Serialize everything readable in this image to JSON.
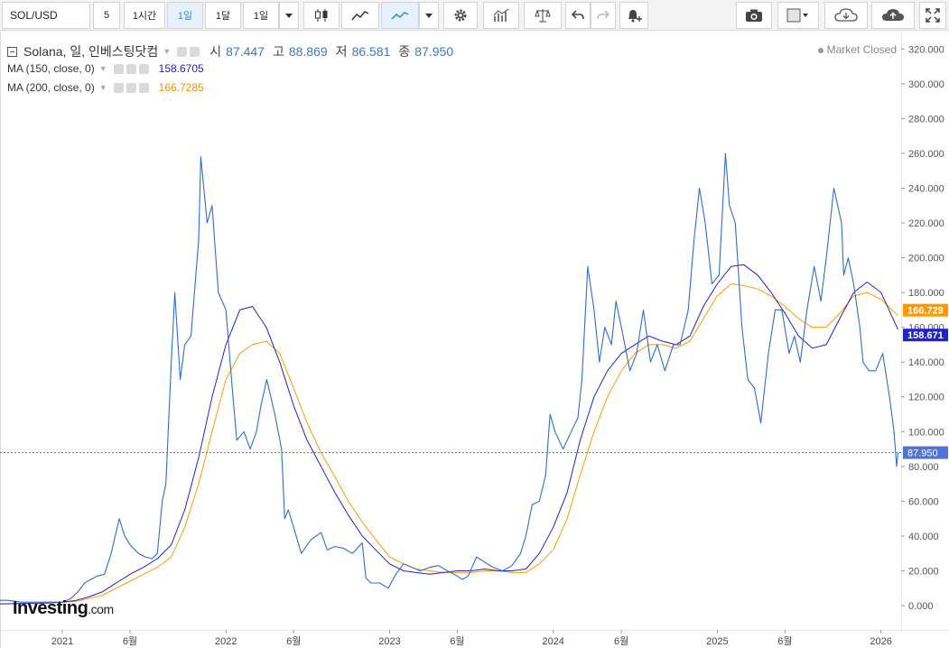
{
  "toolbar": {
    "symbol": "SOL/USD",
    "intervals": [
      "5",
      "1시간",
      "1일",
      "1달",
      "1일"
    ],
    "active_interval": 2
  },
  "legend": {
    "name": "Solana, 일, 인베스팅닷컴",
    "open_label": "시",
    "open": "87.447",
    "high_label": "고",
    "high": "88.869",
    "low_label": "저",
    "low": "86.581",
    "close_label": "종",
    "close": "87.950",
    "ma1_label": "MA (150, close, 0)",
    "ma1_value": "158.6705",
    "ma2_label": "MA (200, close, 0)",
    "ma2_value": "166.7285"
  },
  "status": "Market Closed",
  "logo": {
    "main": "Investing",
    "suffix": ".com"
  },
  "colors": {
    "price": "#2f6ec7",
    "ma150": "#1f23c9",
    "ma200": "#ff9900",
    "last": "#4e74d6"
  },
  "chart_data": {
    "type": "line",
    "ylim": [
      -14,
      330
    ],
    "yticks": [
      0,
      20,
      40,
      60,
      80,
      100,
      120,
      140,
      160,
      180,
      200,
      220,
      240,
      260,
      280,
      300,
      320
    ],
    "ytick_labels": [
      "0.000",
      "20.000",
      "40.000",
      "60.000",
      "80.000",
      "100.000",
      "120.000",
      "140.000",
      "160.000",
      "180.000",
      "200.000",
      "220.000",
      "240.000",
      "260.000",
      "280.000",
      "300.000",
      "320.000"
    ],
    "xlim": [
      "2020-08-15",
      "2026-02-15"
    ],
    "xticks": [
      "2021-01-01",
      "2021-06-01",
      "2022-01-01",
      "2022-06-01",
      "2023-01-01",
      "2023-06-01",
      "2024-01-01",
      "2024-06-01",
      "2025-01-01",
      "2025-06-01",
      "2026-01-01"
    ],
    "xtick_labels": [
      "2021",
      "6월",
      "2022",
      "6월",
      "2023",
      "6월",
      "2024",
      "6월",
      "2025",
      "6월",
      "2026"
    ],
    "last_price": 87.95,
    "last_price_label": "87.950",
    "ma_labels": [
      {
        "value": 166.729,
        "label": "166.729"
      },
      {
        "value": 158.671,
        "label": "158.671"
      }
    ],
    "series": [
      {
        "name": "Solana",
        "x": [
          "2020-08-15",
          "2020-09-01",
          "2020-10-01",
          "2020-11-01",
          "2020-12-01",
          "2021-01-01",
          "2021-01-20",
          "2021-02-05",
          "2021-02-20",
          "2021-03-05",
          "2021-03-20",
          "2021-04-05",
          "2021-04-20",
          "2021-05-08",
          "2021-05-20",
          "2021-06-01",
          "2021-06-20",
          "2021-07-05",
          "2021-07-20",
          "2021-08-01",
          "2021-08-12",
          "2021-08-20",
          "2021-09-01",
          "2021-09-09",
          "2021-09-15",
          "2021-09-21",
          "2021-10-01",
          "2021-10-15",
          "2021-11-01",
          "2021-11-06",
          "2021-11-20",
          "2021-12-01",
          "2021-12-15",
          "2022-01-01",
          "2022-01-15",
          "2022-01-25",
          "2022-02-10",
          "2022-02-24",
          "2022-03-10",
          "2022-03-20",
          "2022-04-02",
          "2022-04-20",
          "2022-05-05",
          "2022-05-12",
          "2022-05-20",
          "2022-06-01",
          "2022-06-18",
          "2022-07-10",
          "2022-08-01",
          "2022-08-15",
          "2022-09-01",
          "2022-09-20",
          "2022-10-10",
          "2022-11-01",
          "2022-11-09",
          "2022-11-20",
          "2022-12-10",
          "2022-12-29",
          "2023-01-15",
          "2023-02-01",
          "2023-02-20",
          "2023-03-10",
          "2023-04-01",
          "2023-04-20",
          "2023-05-10",
          "2023-06-01",
          "2023-06-12",
          "2023-06-25",
          "2023-07-14",
          "2023-08-01",
          "2023-08-20",
          "2023-09-10",
          "2023-10-01",
          "2023-10-20",
          "2023-11-01",
          "2023-11-15",
          "2023-12-01",
          "2023-12-15",
          "2023-12-25",
          "2024-01-05",
          "2024-01-23",
          "2024-02-10",
          "2024-02-25",
          "2024-03-05",
          "2024-03-18",
          "2024-04-01",
          "2024-04-13",
          "2024-04-25",
          "2024-05-10",
          "2024-05-20",
          "2024-06-01",
          "2024-06-20",
          "2024-07-05",
          "2024-07-20",
          "2024-08-05",
          "2024-08-20",
          "2024-09-06",
          "2024-09-25",
          "2024-10-10",
          "2024-10-28",
          "2024-11-10",
          "2024-11-22",
          "2024-12-05",
          "2024-12-20",
          "2025-01-05",
          "2025-01-19",
          "2025-01-28",
          "2025-02-10",
          "2025-02-25",
          "2025-03-10",
          "2025-03-25",
          "2025-04-08",
          "2025-04-25",
          "2025-05-10",
          "2025-05-25",
          "2025-06-10",
          "2025-06-22",
          "2025-07-05",
          "2025-07-20",
          "2025-08-05",
          "2025-08-20",
          "2025-09-01",
          "2025-09-18",
          "2025-10-05",
          "2025-10-10",
          "2025-10-20",
          "2025-11-01",
          "2025-11-15",
          "2025-11-22",
          "2025-12-05",
          "2025-12-20",
          "2026-01-05",
          "2026-01-20",
          "2026-01-30",
          "2026-02-05",
          "2026-02-08"
        ],
        "values": [
          3,
          3,
          2,
          2,
          2,
          2,
          4,
          8,
          13,
          15,
          17,
          18,
          30,
          50,
          40,
          35,
          30,
          28,
          27,
          30,
          60,
          70,
          140,
          180,
          155,
          130,
          150,
          155,
          210,
          258,
          220,
          230,
          180,
          170,
          125,
          95,
          100,
          90,
          100,
          115,
          130,
          110,
          90,
          50,
          55,
          45,
          30,
          38,
          42,
          32,
          34,
          33,
          30,
          36,
          16,
          13,
          13,
          10,
          18,
          24,
          22,
          20,
          22,
          23,
          20,
          17,
          15,
          17,
          28,
          25,
          22,
          20,
          23,
          30,
          40,
          58,
          60,
          75,
          110,
          100,
          90,
          100,
          108,
          130,
          195,
          170,
          140,
          160,
          150,
          175,
          160,
          135,
          145,
          170,
          140,
          150,
          135,
          150,
          150,
          170,
          210,
          240,
          220,
          185,
          190,
          260,
          230,
          220,
          160,
          130,
          125,
          105,
          145,
          170,
          170,
          145,
          155,
          140,
          170,
          195,
          175,
          200,
          240,
          220,
          190,
          200,
          185,
          160,
          140,
          135,
          135,
          145,
          120,
          100,
          80,
          87.95
        ]
      },
      {
        "name": "MA (150, close, 0)",
        "x": [
          "2020-08-15",
          "2020-12-01",
          "2021-01-01",
          "2021-02-01",
          "2021-03-01",
          "2021-04-01",
          "2021-05-01",
          "2021-06-01",
          "2021-07-01",
          "2021-08-01",
          "2021-09-01",
          "2021-10-01",
          "2021-11-01",
          "2021-12-01",
          "2022-01-01",
          "2022-02-01",
          "2022-03-01",
          "2022-04-01",
          "2022-05-01",
          "2022-06-01",
          "2022-07-01",
          "2022-08-01",
          "2022-09-01",
          "2022-10-01",
          "2022-11-01",
          "2022-12-01",
          "2023-01-01",
          "2023-02-01",
          "2023-03-01",
          "2023-04-01",
          "2023-05-01",
          "2023-06-01",
          "2023-07-01",
          "2023-08-01",
          "2023-09-01",
          "2023-10-01",
          "2023-11-01",
          "2023-12-01",
          "2024-01-01",
          "2024-02-01",
          "2024-03-01",
          "2024-04-01",
          "2024-05-01",
          "2024-06-01",
          "2024-07-01",
          "2024-08-01",
          "2024-09-01",
          "2024-10-01",
          "2024-11-01",
          "2024-12-01",
          "2025-01-01",
          "2025-02-01",
          "2025-03-01",
          "2025-04-01",
          "2025-05-01",
          "2025-06-01",
          "2025-07-01",
          "2025-08-01",
          "2025-09-01",
          "2025-10-01",
          "2025-11-01",
          "2025-12-01",
          "2026-01-01",
          "2026-02-08"
        ],
        "values": [
          1,
          1.5,
          2,
          3,
          5,
          8,
          13,
          18,
          22,
          27,
          35,
          55,
          85,
          120,
          150,
          170,
          172,
          160,
          140,
          115,
          95,
          80,
          65,
          52,
          40,
          32,
          24,
          20,
          19,
          18,
          19,
          20,
          20,
          21,
          20,
          20,
          21,
          30,
          45,
          65,
          95,
          120,
          135,
          145,
          150,
          155,
          152,
          150,
          155,
          172,
          185,
          195,
          196,
          190,
          180,
          168,
          155,
          148,
          150,
          165,
          180,
          186,
          180,
          158.6705
        ]
      },
      {
        "name": "MA (200, close, 0)",
        "x": [
          "2020-08-15",
          "2020-12-01",
          "2021-01-01",
          "2021-02-01",
          "2021-03-01",
          "2021-04-01",
          "2021-05-01",
          "2021-06-01",
          "2021-07-01",
          "2021-08-01",
          "2021-09-01",
          "2021-10-01",
          "2021-11-01",
          "2021-12-01",
          "2022-01-01",
          "2022-02-01",
          "2022-03-01",
          "2022-04-01",
          "2022-05-01",
          "2022-06-01",
          "2022-07-01",
          "2022-08-01",
          "2022-09-01",
          "2022-10-01",
          "2022-11-01",
          "2022-12-01",
          "2023-01-01",
          "2023-02-01",
          "2023-03-01",
          "2023-04-01",
          "2023-05-01",
          "2023-06-01",
          "2023-07-01",
          "2023-08-01",
          "2023-09-01",
          "2023-10-01",
          "2023-11-01",
          "2023-12-01",
          "2024-01-01",
          "2024-02-01",
          "2024-03-01",
          "2024-04-01",
          "2024-05-01",
          "2024-06-01",
          "2024-07-01",
          "2024-08-01",
          "2024-09-01",
          "2024-10-01",
          "2024-11-01",
          "2024-12-01",
          "2025-01-01",
          "2025-02-01",
          "2025-03-01",
          "2025-04-01",
          "2025-05-01",
          "2025-06-01",
          "2025-07-01",
          "2025-08-01",
          "2025-09-01",
          "2025-10-01",
          "2025-11-01",
          "2025-12-01",
          "2026-01-01",
          "2026-02-08"
        ],
        "values": [
          1,
          1.5,
          2,
          2.5,
          4,
          6,
          10,
          14,
          18,
          22,
          28,
          45,
          70,
          100,
          130,
          145,
          150,
          152,
          145,
          125,
          105,
          88,
          74,
          60,
          48,
          38,
          28,
          24,
          21,
          20,
          19,
          19,
          19,
          20,
          20,
          19,
          19,
          24,
          32,
          50,
          75,
          100,
          120,
          135,
          145,
          150,
          150,
          148,
          152,
          165,
          178,
          185,
          184,
          182,
          178,
          172,
          165,
          160,
          160,
          168,
          178,
          180,
          176,
          166.7285
        ]
      }
    ]
  }
}
